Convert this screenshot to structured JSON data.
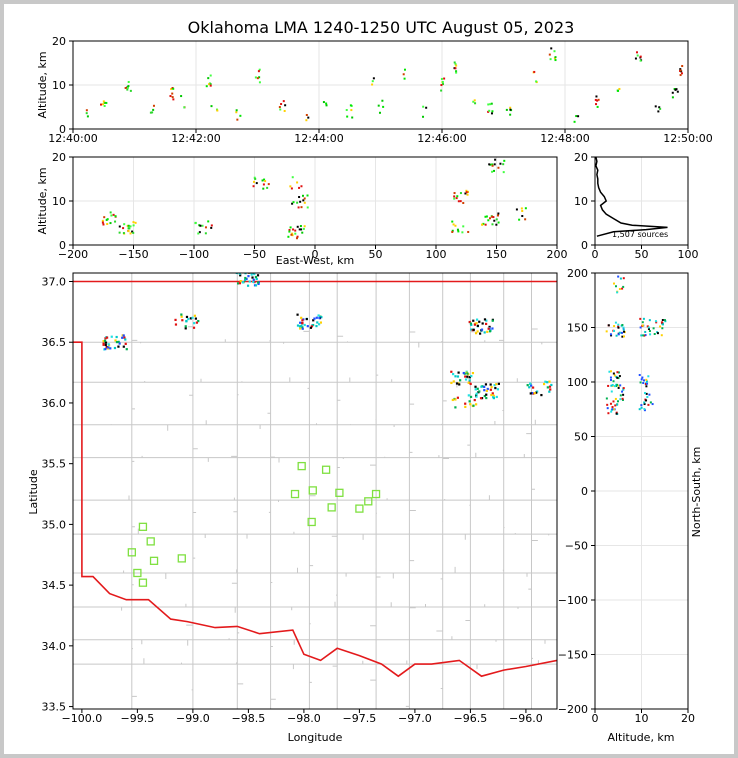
{
  "title": "Oklahoma LMA 1240-1250 UTC August 05, 2023",
  "colors": {
    "state_border": "#e31a1c",
    "county_lines": "#c8c8c8",
    "stations": "#7fe040",
    "grid": "#e6e6e6"
  },
  "chart_data": [
    {
      "name": "altitude-time",
      "type": "scatter",
      "ylabel": "Altitude, km",
      "ylim": [
        0,
        20
      ],
      "yticks": [
        "0",
        "10",
        "20"
      ],
      "xlim": [
        "12:40:00",
        "12:50:00"
      ],
      "xticks": [
        "12:40:00",
        "12:42:00",
        "12:44:00",
        "12:46:00",
        "12:48:00",
        "12:50:00"
      ],
      "grid": true,
      "sources": [
        {
          "t": 0.2,
          "alt": 3.5
        },
        {
          "t": 0.5,
          "alt": 5
        },
        {
          "t": 0.9,
          "alt": 10
        },
        {
          "t": 1.3,
          "alt": 4
        },
        {
          "t": 1.6,
          "alt": 8
        },
        {
          "t": 1.8,
          "alt": 6
        },
        {
          "t": 2.2,
          "alt": 11
        },
        {
          "t": 2.3,
          "alt": 4
        },
        {
          "t": 2.7,
          "alt": 3
        },
        {
          "t": 3.0,
          "alt": 12
        },
        {
          "t": 3.4,
          "alt": 5
        },
        {
          "t": 3.8,
          "alt": 3
        },
        {
          "t": 4.1,
          "alt": 6
        },
        {
          "t": 4.5,
          "alt": 4
        },
        {
          "t": 4.9,
          "alt": 11
        },
        {
          "t": 5.0,
          "alt": 5
        },
        {
          "t": 5.4,
          "alt": 12
        },
        {
          "t": 5.7,
          "alt": 4
        },
        {
          "t": 6.0,
          "alt": 10
        },
        {
          "t": 6.2,
          "alt": 14
        },
        {
          "t": 6.5,
          "alt": 7
        },
        {
          "t": 6.8,
          "alt": 5
        },
        {
          "t": 7.1,
          "alt": 4
        },
        {
          "t": 7.5,
          "alt": 12
        },
        {
          "t": 7.8,
          "alt": 17
        },
        {
          "t": 8.2,
          "alt": 3
        },
        {
          "t": 8.5,
          "alt": 6
        },
        {
          "t": 8.9,
          "alt": 10
        },
        {
          "t": 9.2,
          "alt": 17
        },
        {
          "t": 9.5,
          "alt": 4
        },
        {
          "t": 9.8,
          "alt": 8
        },
        {
          "t": 9.9,
          "alt": 13
        }
      ]
    },
    {
      "name": "altitude-east-west",
      "type": "scatter",
      "xlabel": "East-West, km",
      "ylabel": "Altitude, km",
      "xlim": [
        -200,
        200
      ],
      "ylim": [
        0,
        20
      ],
      "xticks": [
        "−200",
        "−150",
        "−100",
        "−50",
        "0",
        "50",
        "100",
        "150",
        "200"
      ],
      "yticks": [
        "0",
        "10",
        "20"
      ],
      "grid": true,
      "clusters": [
        {
          "x": -170,
          "alt": 6
        },
        {
          "x": -155,
          "alt": 4
        },
        {
          "x": -92,
          "alt": 4
        },
        {
          "x": -45,
          "alt": 14
        },
        {
          "x": -15,
          "alt": 3
        },
        {
          "x": -12,
          "alt": 10
        },
        {
          "x": -14,
          "alt": 14
        },
        {
          "x": 120,
          "alt": 4
        },
        {
          "x": 122,
          "alt": 11
        },
        {
          "x": 145,
          "alt": 6
        },
        {
          "x": 150,
          "alt": 18
        },
        {
          "x": 172,
          "alt": 7
        }
      ]
    },
    {
      "name": "altitude-histogram",
      "type": "line",
      "xlim": [
        0,
        100
      ],
      "ylim": [
        0,
        20
      ],
      "xticks": [
        "0",
        "50",
        "100"
      ],
      "yticks": [
        "0",
        "10",
        "20"
      ],
      "annotation": "1,507 sources",
      "counts": [
        {
          "alt": 2,
          "n": 2
        },
        {
          "alt": 3,
          "n": 20
        },
        {
          "alt": 3.5,
          "n": 55
        },
        {
          "alt": 4,
          "n": 78
        },
        {
          "alt": 4.5,
          "n": 40
        },
        {
          "alt": 5,
          "n": 28
        },
        {
          "alt": 6,
          "n": 20
        },
        {
          "alt": 7,
          "n": 12
        },
        {
          "alt": 8,
          "n": 8
        },
        {
          "alt": 9,
          "n": 6
        },
        {
          "alt": 10,
          "n": 12
        },
        {
          "alt": 11,
          "n": 10
        },
        {
          "alt": 12,
          "n": 6
        },
        {
          "alt": 13,
          "n": 4
        },
        {
          "alt": 14,
          "n": 3
        },
        {
          "alt": 15,
          "n": 3
        },
        {
          "alt": 16,
          "n": 2
        },
        {
          "alt": 17,
          "n": 3
        },
        {
          "alt": 18,
          "n": 1
        },
        {
          "alt": 19,
          "n": 2
        },
        {
          "alt": 20,
          "n": 1
        }
      ]
    },
    {
      "name": "plan-view-map",
      "type": "scatter",
      "xlabel": "Longitude",
      "ylabel": "Latitude",
      "xlim": [
        -100.08,
        -95.72
      ],
      "ylim": [
        33.48,
        37.07
      ],
      "xticks": [
        "−100.0",
        "−99.5",
        "−99.0",
        "−98.5",
        "−98.0",
        "−97.5",
        "−97.0",
        "−96.5",
        "−96.0"
      ],
      "yticks": [
        "33.5",
        "34.0",
        "34.5",
        "35.0",
        "35.5",
        "36.0",
        "36.5",
        "37.0"
      ],
      "stations": [
        {
          "lon": -99.45,
          "lat": 34.98
        },
        {
          "lon": -99.38,
          "lat": 34.86
        },
        {
          "lon": -99.55,
          "lat": 34.77
        },
        {
          "lon": -99.35,
          "lat": 34.7
        },
        {
          "lon": -99.1,
          "lat": 34.72
        },
        {
          "lon": -99.5,
          "lat": 34.6
        },
        {
          "lon": -99.45,
          "lat": 34.52
        },
        {
          "lon": -98.02,
          "lat": 35.48
        },
        {
          "lon": -97.8,
          "lat": 35.45
        },
        {
          "lon": -98.08,
          "lat": 35.25
        },
        {
          "lon": -97.92,
          "lat": 35.28
        },
        {
          "lon": -97.68,
          "lat": 35.26
        },
        {
          "lon": -97.35,
          "lat": 35.25
        },
        {
          "lon": -97.42,
          "lat": 35.19
        },
        {
          "lon": -97.75,
          "lat": 35.14
        },
        {
          "lon": -97.5,
          "lat": 35.13
        },
        {
          "lon": -97.93,
          "lat": 35.02
        }
      ],
      "source_clusters": [
        {
          "lon": -97.95,
          "lat": 36.67
        },
        {
          "lon": -96.4,
          "lat": 36.63
        },
        {
          "lon": -96.58,
          "lat": 36.2
        },
        {
          "lon": -96.55,
          "lat": 36.02
        },
        {
          "lon": -96.35,
          "lat": 36.1
        },
        {
          "lon": -99.05,
          "lat": 36.67
        },
        {
          "lon": -98.5,
          "lat": 37.02
        },
        {
          "lon": -99.7,
          "lat": 36.5
        },
        {
          "lon": -95.88,
          "lat": 36.12
        }
      ]
    },
    {
      "name": "north-south-altitude",
      "type": "scatter",
      "xlabel": "Altitude, km",
      "ylabel": "North-South, km",
      "xlim": [
        0,
        20
      ],
      "ylim": [
        -200,
        200
      ],
      "xticks": [
        "0",
        "10",
        "20"
      ],
      "yticks": [
        "−200",
        "−150",
        "−100",
        "−50",
        "0",
        "50",
        "100",
        "150",
        "200"
      ],
      "clusters": [
        {
          "alt": 4,
          "ns": 150
        },
        {
          "alt": 6,
          "ns": 145
        },
        {
          "alt": 11,
          "ns": 150
        },
        {
          "alt": 14,
          "ns": 150
        },
        {
          "alt": 4,
          "ns": 102
        },
        {
          "alt": 5,
          "ns": 90
        },
        {
          "alt": 11,
          "ns": 100
        },
        {
          "alt": 11,
          "ns": 82
        },
        {
          "alt": 4,
          "ns": 78
        },
        {
          "alt": 5,
          "ns": 190
        }
      ]
    }
  ]
}
